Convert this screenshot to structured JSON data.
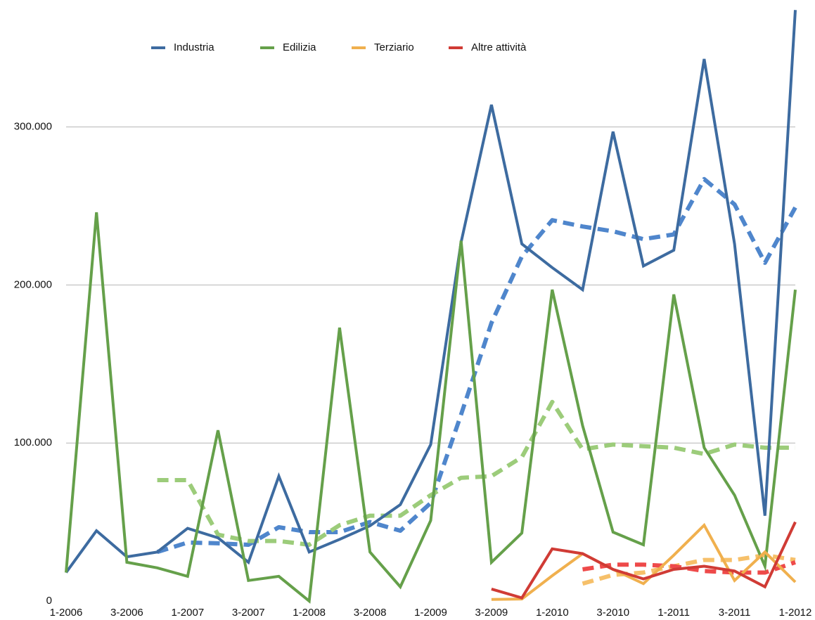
{
  "chart_data": {
    "type": "line",
    "categories": [
      "1-2006",
      null,
      "3-2006",
      null,
      "1-2007",
      null,
      "3-2007",
      null,
      "1-2008",
      null,
      "3-2008",
      null,
      "1-2009",
      null,
      "3-2009",
      null,
      "1-2010",
      null,
      "3-2010",
      null,
      "1-2011",
      null,
      "3-2011",
      null,
      "1-2012"
    ],
    "series": [
      {
        "name": "Industria",
        "color": "#3d6ba0",
        "trend_color": "#4f86cc",
        "values": [
          18000,
          44500,
          28000,
          31000,
          46000,
          40000,
          24500,
          79000,
          31000,
          39000,
          47600,
          61000,
          99000,
          227000,
          314000,
          226000,
          211000,
          197000,
          297000,
          212000,
          222000,
          343000,
          226000,
          54000,
          374000
        ],
        "trend": [
          null,
          null,
          null,
          31000,
          37000,
          36500,
          35600,
          46700,
          43600,
          43600,
          50000,
          44500,
          62000,
          118000,
          176000,
          218000,
          241000,
          237000,
          234000,
          229000,
          232000,
          267000,
          251000,
          214000,
          249000
        ]
      },
      {
        "name": "Edilizia",
        "color": "#65a04a",
        "trend_color": "#9ccc7a",
        "values": [
          18000,
          246000,
          24500,
          21000,
          15600,
          108000,
          13000,
          15600,
          0,
          173000,
          31000,
          9000,
          51000,
          228000,
          24500,
          43000,
          197000,
          111000,
          43600,
          35600,
          194000,
          97000,
          67000,
          22000,
          197000
        ],
        "trend": [
          null,
          null,
          null,
          76500,
          76500,
          42000,
          38000,
          38000,
          35600,
          48000,
          54000,
          54000,
          67000,
          78000,
          79000,
          91000,
          126000,
          96000,
          99000,
          98000,
          97000,
          93000,
          99000,
          97000,
          97000
        ]
      },
      {
        "name": "Terziario",
        "color": "#f0b04e",
        "trend_color": "#f6c06a",
        "values": [
          null,
          null,
          null,
          null,
          null,
          null,
          null,
          null,
          null,
          null,
          null,
          null,
          null,
          null,
          1000,
          1300,
          16000,
          30000,
          20000,
          11000,
          29000,
          48000,
          13000,
          31000,
          12000
        ],
        "trend": [
          null,
          null,
          null,
          null,
          null,
          null,
          null,
          null,
          null,
          null,
          null,
          null,
          null,
          null,
          null,
          null,
          null,
          11000,
          16500,
          18000,
          22000,
          26000,
          26000,
          29000,
          26000
        ]
      },
      {
        "name": "Altre attività",
        "color": "#d03b35",
        "trend_color": "#ee4a4a",
        "values": [
          null,
          null,
          null,
          null,
          null,
          null,
          null,
          null,
          null,
          null,
          null,
          null,
          null,
          null,
          7600,
          2000,
          33000,
          30000,
          20000,
          14000,
          20000,
          22000,
          19000,
          9000,
          50000
        ],
        "trend": [
          null,
          null,
          null,
          null,
          null,
          null,
          null,
          null,
          null,
          null,
          null,
          null,
          null,
          null,
          null,
          null,
          null,
          20000,
          23000,
          23000,
          22000,
          19000,
          18000,
          18000,
          24500
        ]
      }
    ],
    "ylim": [
      0,
      375000
    ],
    "yticks": [
      0,
      {
        "value": 100000,
        "label": "100.000"
      },
      {
        "value": 200000,
        "label": "200.000"
      },
      {
        "value": 300000,
        "label": "300.000"
      }
    ],
    "grid": true
  }
}
